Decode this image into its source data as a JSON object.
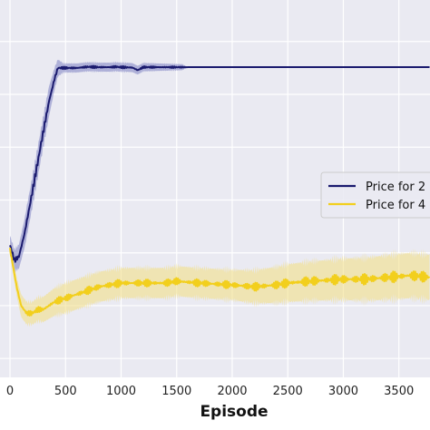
{
  "chart_data": {
    "type": "line",
    "title": "",
    "xlabel": "Episode",
    "ylabel": "",
    "xlim": [
      -90,
      3780
    ],
    "ylim": [
      0,
      1
    ],
    "x_ticks": [
      0,
      500,
      1000,
      1500,
      2000,
      2500,
      3000,
      3500
    ],
    "x_tick_labels": [
      "0",
      "500",
      "1000",
      "1500",
      "2000",
      "2500",
      "3000",
      "3500"
    ],
    "y_gridlines": [
      0.05,
      0.19,
      0.33,
      0.47,
      0.61,
      0.75,
      0.89
    ],
    "grid": true,
    "background": "#eaeaf2",
    "legend_position": "center-right",
    "series": [
      {
        "name": "Price for 2",
        "color": "#1a1a6e",
        "band_color": "#7c7fc2",
        "points": [
          [
            0,
            0.35
          ],
          [
            40,
            0.31
          ],
          [
            80,
            0.32
          ],
          [
            130,
            0.38
          ],
          [
            200,
            0.49
          ],
          [
            280,
            0.62
          ],
          [
            350,
            0.73
          ],
          [
            400,
            0.79
          ],
          [
            430,
            0.82
          ],
          [
            480,
            0.82
          ],
          [
            600,
            0.82
          ],
          [
            700,
            0.823
          ],
          [
            800,
            0.822
          ],
          [
            900,
            0.822
          ],
          [
            950,
            0.823
          ],
          [
            1000,
            0.822
          ],
          [
            1100,
            0.821
          ],
          [
            1150,
            0.814
          ],
          [
            1200,
            0.822
          ],
          [
            1400,
            0.822
          ],
          [
            1600,
            0.822
          ],
          [
            2000,
            0.822
          ],
          [
            2500,
            0.822
          ],
          [
            3000,
            0.822
          ],
          [
            3500,
            0.822
          ],
          [
            3780,
            0.822
          ]
        ],
        "band": [
          [
            0,
            0.025
          ],
          [
            60,
            0.03
          ],
          [
            150,
            0.04
          ],
          [
            250,
            0.04
          ],
          [
            350,
            0.04
          ],
          [
            420,
            0.025
          ],
          [
            480,
            0.012
          ],
          [
            900,
            0.012
          ],
          [
            1100,
            0.012
          ],
          [
            1550,
            0.008
          ],
          [
            1600,
            0.0
          ],
          [
            3780,
            0.0
          ]
        ]
      },
      {
        "name": "Price for 4",
        "color": "#f2cf1d",
        "band_color": "#f2df7f",
        "points": [
          [
            0,
            0.34
          ],
          [
            60,
            0.24
          ],
          [
            100,
            0.19
          ],
          [
            150,
            0.17
          ],
          [
            200,
            0.17
          ],
          [
            250,
            0.18
          ],
          [
            300,
            0.18
          ],
          [
            400,
            0.2
          ],
          [
            500,
            0.21
          ],
          [
            600,
            0.22
          ],
          [
            700,
            0.23
          ],
          [
            800,
            0.24
          ],
          [
            900,
            0.245
          ],
          [
            1000,
            0.25
          ],
          [
            1200,
            0.25
          ],
          [
            1400,
            0.25
          ],
          [
            1500,
            0.255
          ],
          [
            1700,
            0.25
          ],
          [
            2000,
            0.245
          ],
          [
            2200,
            0.24
          ],
          [
            2400,
            0.245
          ],
          [
            2500,
            0.25
          ],
          [
            2700,
            0.255
          ],
          [
            3000,
            0.26
          ],
          [
            3200,
            0.26
          ],
          [
            3400,
            0.265
          ],
          [
            3600,
            0.27
          ],
          [
            3780,
            0.265
          ]
        ],
        "band": [
          [
            0,
            0.015
          ],
          [
            100,
            0.03
          ],
          [
            200,
            0.03
          ],
          [
            500,
            0.04
          ],
          [
            1000,
            0.04
          ],
          [
            1500,
            0.04
          ],
          [
            2000,
            0.04
          ],
          [
            2500,
            0.05
          ],
          [
            3000,
            0.055
          ],
          [
            3500,
            0.06
          ],
          [
            3780,
            0.06
          ]
        ]
      }
    ]
  }
}
